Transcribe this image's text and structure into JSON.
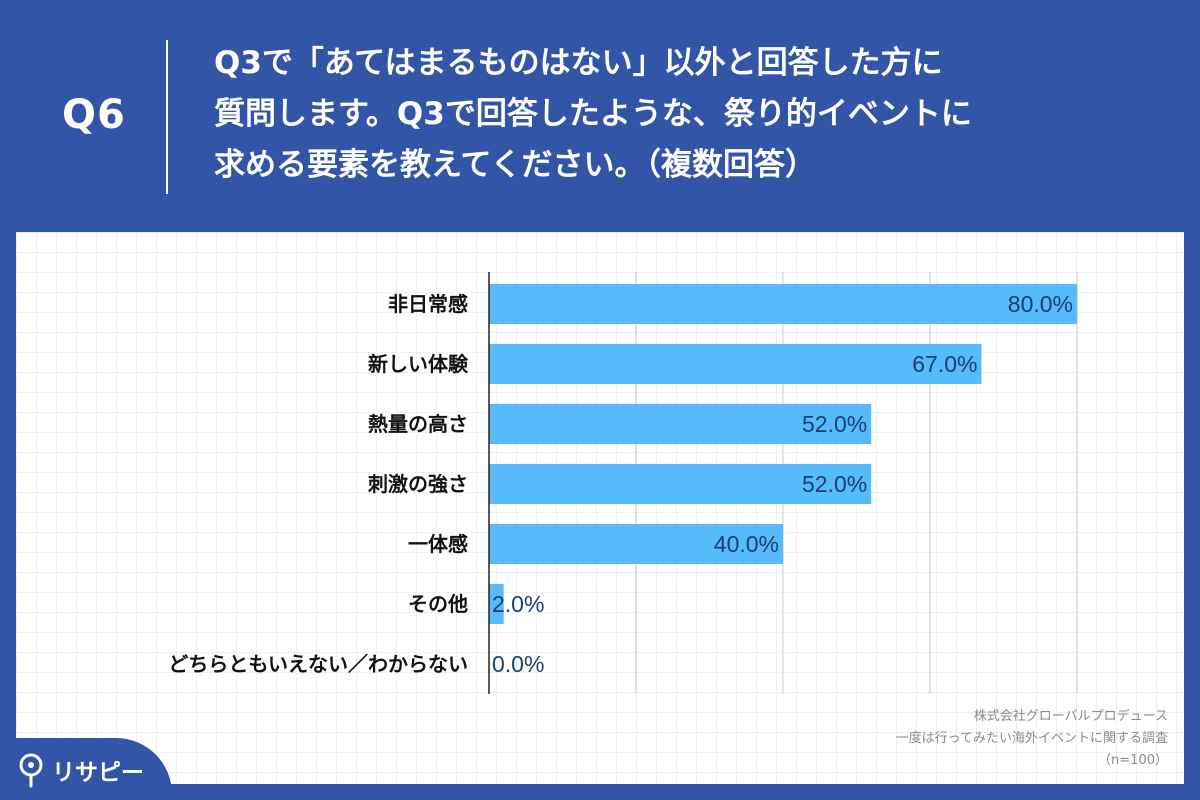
{
  "header": {
    "q_label": "Q6",
    "question_lines": [
      "Q3で「あてはまるものはない」以外と回答した方に",
      "質問します。Q3で回答したような、祭り的イベントに",
      "求める要素を教えてください。（複数回答）"
    ]
  },
  "chart_data": {
    "type": "bar",
    "orientation": "horizontal",
    "categories": [
      "非日常感",
      "新しい体験",
      "熱量の高さ",
      "刺激の強さ",
      "一体感",
      "その他",
      "どちらともいえない／わからない"
    ],
    "values": [
      80.0,
      67.0,
      52.0,
      52.0,
      40.0,
      2.0,
      0.0
    ],
    "value_labels": [
      "80.0%",
      "67.0%",
      "52.0%",
      "52.0%",
      "40.0%",
      "2.0%",
      "0.0%"
    ],
    "xlim": [
      0,
      80
    ],
    "gridlines": [
      0,
      20,
      40,
      60,
      80
    ],
    "bar_color": "#55bbfa",
    "value_label_color": "#1a3f73"
  },
  "source": {
    "lines": [
      "株式会社グローバルプロデュース",
      "一度は行ってみたい海外イベントに関する調査",
      "（n=100）"
    ]
  },
  "logo": {
    "text": "リサピー"
  },
  "colors": {
    "background": "#3355a8",
    "panel": "#ffffff"
  }
}
